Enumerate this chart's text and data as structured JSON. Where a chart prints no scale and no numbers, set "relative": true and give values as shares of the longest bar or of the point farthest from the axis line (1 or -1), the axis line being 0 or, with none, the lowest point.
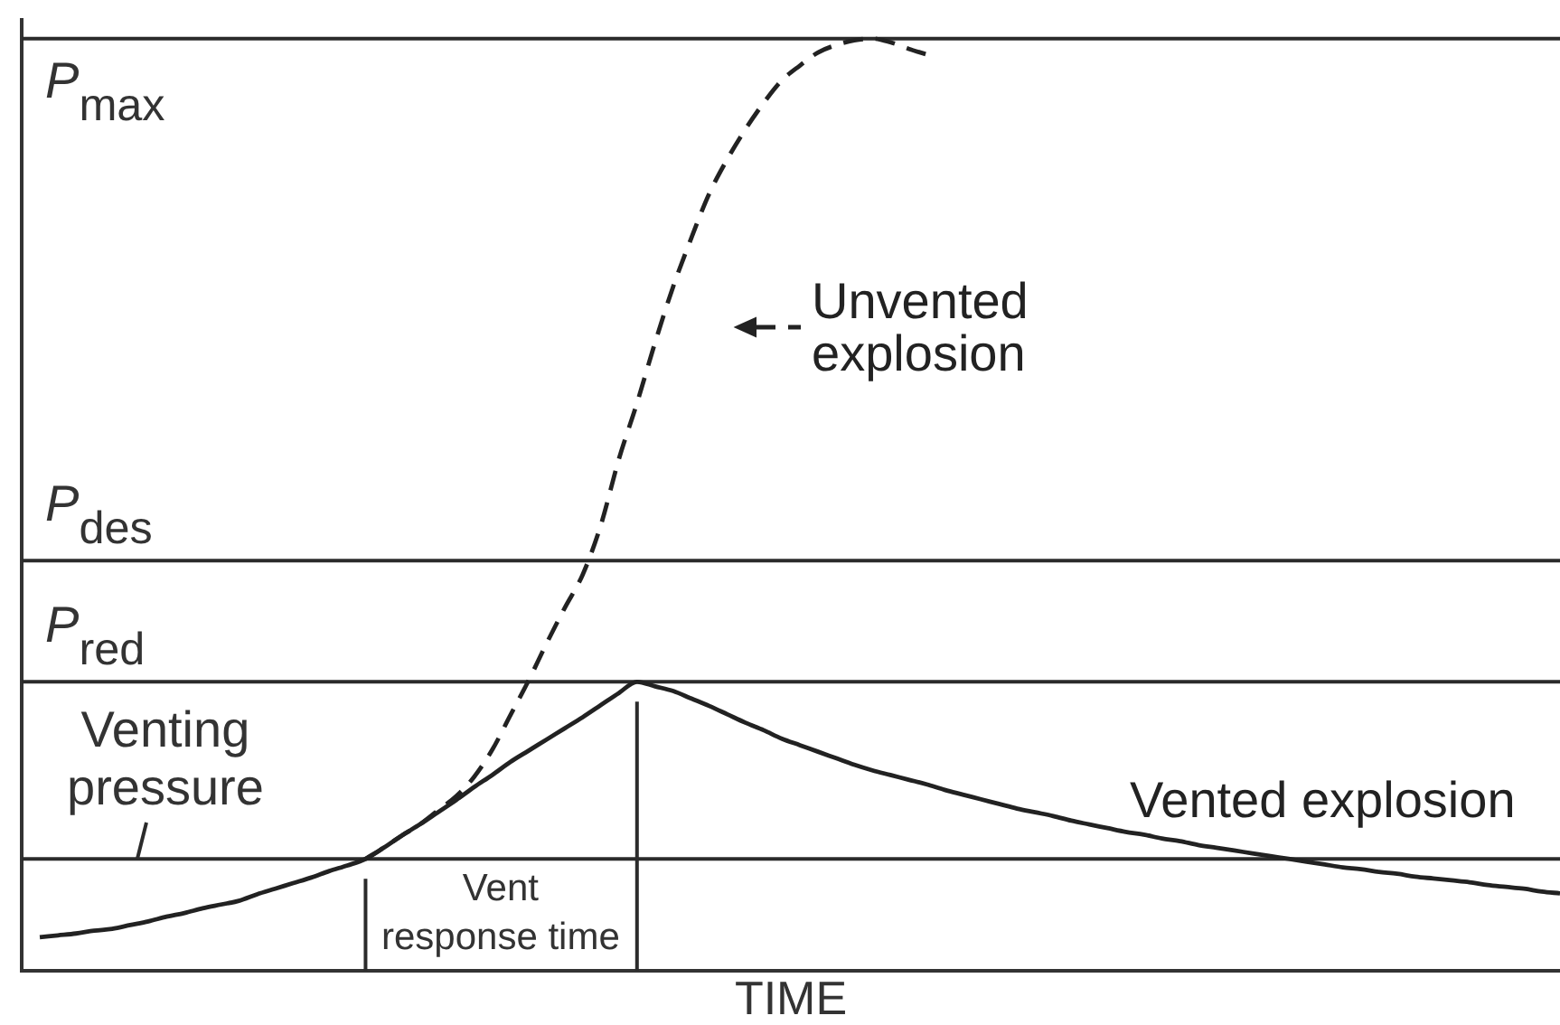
{
  "chart_data": {
    "type": "line",
    "xlabel": "TIME",
    "relative": true,
    "tick_labels": false,
    "categories": [
      null,
      null,
      null,
      null,
      null,
      null,
      null,
      null,
      null,
      null,
      null,
      null,
      null,
      null,
      null,
      null,
      null,
      null,
      null,
      null,
      null,
      null,
      null,
      null,
      null,
      null,
      null,
      null,
      null,
      null,
      null,
      null,
      null,
      null,
      null,
      null,
      null,
      null,
      null,
      null,
      null,
      null,
      null,
      null,
      null,
      null,
      null,
      null,
      null,
      null,
      null,
      null,
      null,
      null,
      null,
      null,
      null,
      null,
      null,
      null,
      null,
      null,
      null,
      null,
      null,
      null,
      null,
      null,
      null,
      null,
      null,
      null,
      null,
      null,
      null,
      null,
      null,
      null,
      null,
      null,
      null,
      null,
      null,
      null,
      null,
      null
    ],
    "series": [
      {
        "name": "Vented explosion",
        "color": "#222222",
        "line_style": "solid",
        "values": [
          null,
          0.036,
          0.038,
          0.04,
          0.043,
          0.045,
          0.049,
          0.053,
          0.058,
          0.062,
          0.067,
          0.071,
          0.075,
          0.082,
          0.088,
          0.094,
          0.1,
          0.107,
          0.113,
          0.12,
          0.132,
          0.145,
          0.157,
          0.17,
          0.183,
          0.197,
          0.21,
          0.224,
          0.236,
          0.248,
          0.26,
          0.272,
          0.285,
          0.298,
          0.31,
          0.305,
          0.3,
          0.292,
          0.284,
          0.275,
          0.266,
          0.258,
          0.249,
          0.242,
          0.235,
          0.228,
          0.221,
          0.215,
          0.21,
          0.205,
          0.2,
          0.194,
          0.189,
          0.184,
          0.179,
          0.174,
          0.17,
          0.166,
          0.161,
          0.157,
          0.153,
          0.149,
          0.146,
          0.142,
          0.139,
          0.135,
          0.132,
          0.129,
          0.126,
          0.123,
          0.12,
          0.117,
          0.114,
          0.111,
          0.109,
          0.106,
          0.104,
          0.101,
          0.099,
          0.097,
          0.095,
          0.092,
          0.09,
          0.088,
          0.085,
          0.083
        ]
      },
      {
        "name": "Unvented explosion",
        "color": "#222222",
        "line_style": "dashed",
        "values": [
          null,
          null,
          null,
          null,
          null,
          null,
          null,
          null,
          null,
          null,
          null,
          null,
          null,
          null,
          null,
          null,
          null,
          null,
          null,
          0.12,
          0.132,
          0.145,
          0.157,
          0.172,
          0.187,
          0.208,
          0.237,
          0.274,
          0.311,
          0.351,
          0.389,
          0.425,
          0.478,
          0.549,
          0.609,
          0.674,
          0.734,
          0.786,
          0.834,
          0.871,
          0.903,
          0.931,
          0.955,
          0.971,
          0.985,
          0.993,
          0.998,
          1.0,
          0.996,
          0.989,
          0.983,
          null,
          null,
          null,
          null,
          null,
          null,
          null,
          null,
          null,
          null,
          null,
          null,
          null,
          null,
          null,
          null,
          null,
          null,
          null,
          null,
          null,
          null,
          null,
          null,
          null,
          null,
          null,
          null,
          null,
          null,
          null,
          null,
          null,
          null,
          null
        ]
      }
    ],
    "ref_lines": [
      {
        "axis": "y",
        "value": 1.0,
        "label": "P$_{max}$",
        "color": "#2b2b2b"
      },
      {
        "axis": "y",
        "value": 0.44,
        "label": "P$_{des}$",
        "color": "#2b2b2b"
      },
      {
        "axis": "y",
        "value": 0.31,
        "label": "P$_{red}$",
        "color": "#2b2b2b"
      },
      {
        "axis": "y",
        "value": 0.12,
        "label": "Venting pressure",
        "color": "#2b2b2b"
      }
    ],
    "annotations": [
      "Vent response time"
    ]
  }
}
